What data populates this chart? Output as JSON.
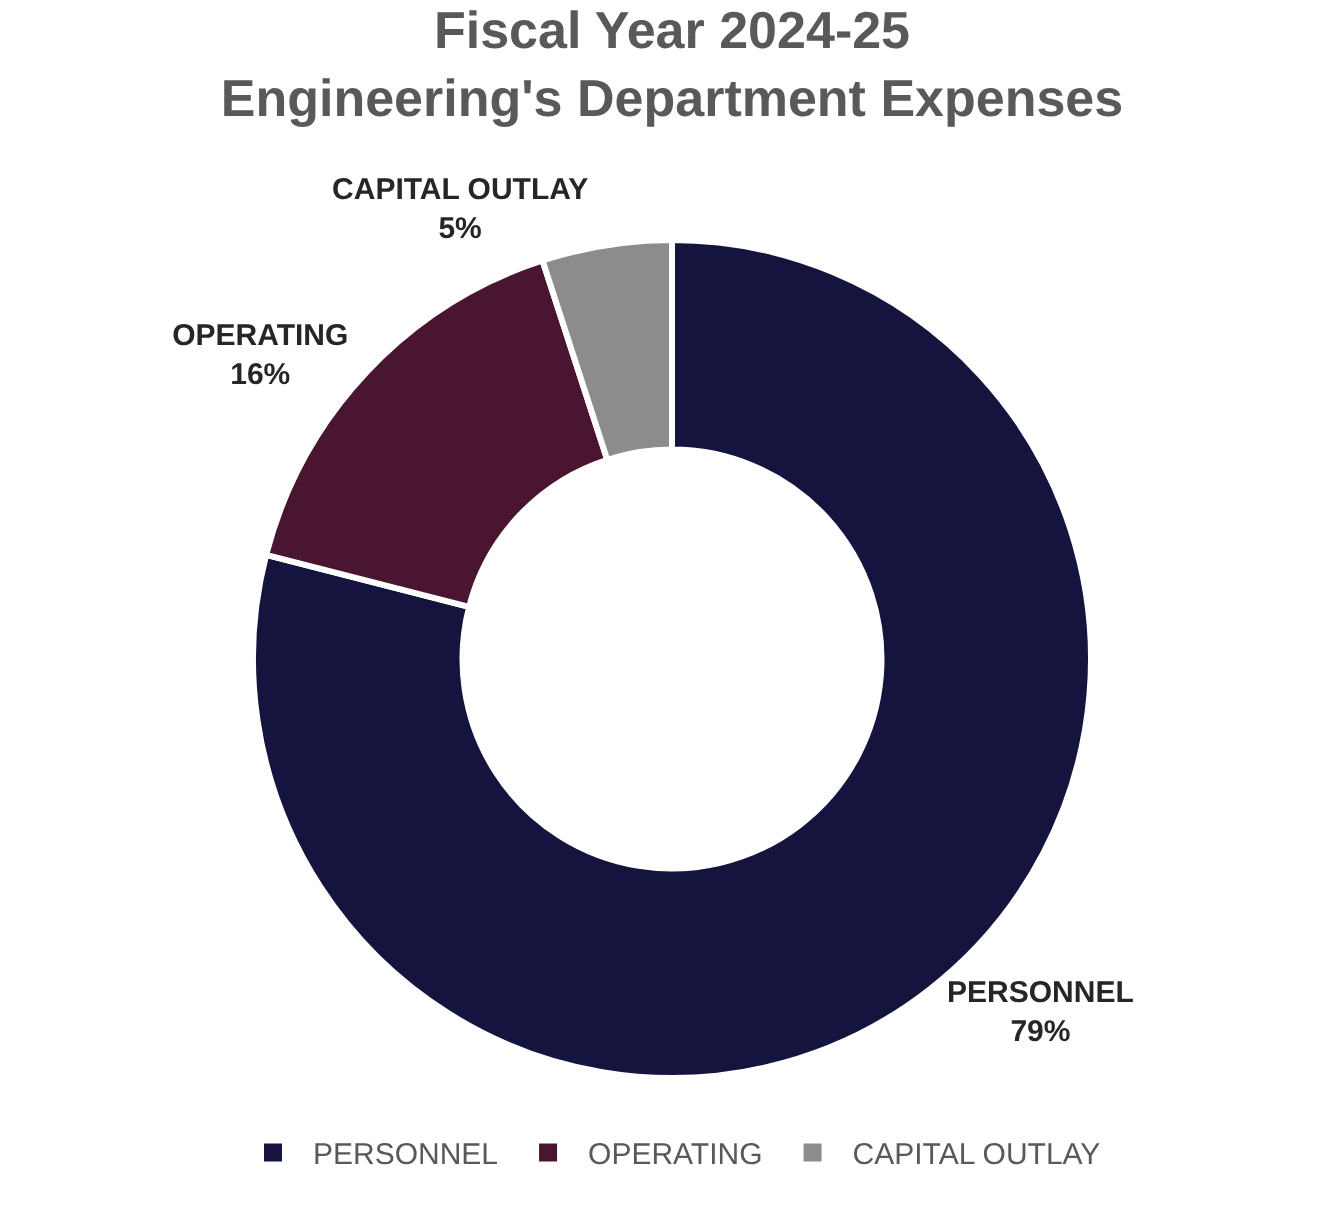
{
  "chart_data": {
    "type": "donut",
    "title": "Fiscal Year 2024-25\nEngineering's Department Expenses",
    "categories": [
      "PERSONNEL",
      "OPERATING",
      "CAPITAL OUTLAY"
    ],
    "values": [
      79,
      16,
      5
    ],
    "colors": [
      "#14143f",
      "#4a1530",
      "#8c8c8c"
    ],
    "value_labels": [
      "79%",
      "16%",
      "5%"
    ],
    "legend": "bottom"
  }
}
